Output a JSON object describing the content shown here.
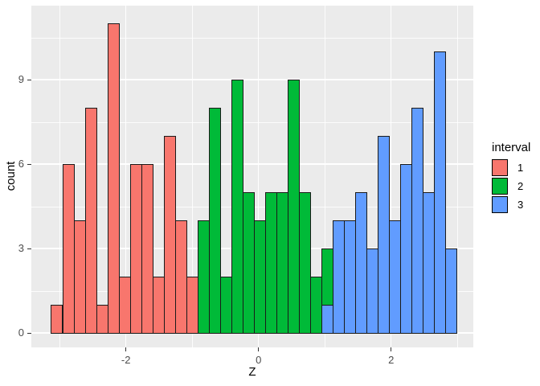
{
  "figure": {
    "background": "#FFFFFF"
  },
  "panel": {
    "background": "#EBEBEB",
    "gridline_color": "#FFFFFF",
    "bar_outline": "#1A1A1A"
  },
  "legend": {
    "title": "interval",
    "items": [
      {
        "label": "1",
        "color": "#F8766D"
      },
      {
        "label": "2",
        "color": "#00BA38"
      },
      {
        "label": "3",
        "color": "#619CFF"
      }
    ]
  },
  "axes": {
    "x": {
      "title": "Z",
      "ticks": [
        {
          "label": "-2",
          "value": -2
        },
        {
          "label": "0",
          "value": 0
        },
        {
          "label": "2",
          "value": 2
        }
      ],
      "minor_ticks": [
        -3,
        -1,
        1,
        3
      ],
      "tick_color": "#333333",
      "label_color": "#4D4D4D"
    },
    "y": {
      "title": "count",
      "ticks": [
        {
          "label": "0",
          "value": 0
        },
        {
          "label": "3",
          "value": 3
        },
        {
          "label": "6",
          "value": 6
        },
        {
          "label": "9",
          "value": 9
        }
      ],
      "minor_ticks": [
        1.5,
        4.5,
        7.5,
        10.5
      ],
      "tick_color": "#333333",
      "label_color": "#4D4D4D"
    }
  },
  "chart_data": {
    "type": "bar",
    "subtype": "stacked-histogram",
    "title": "",
    "xlabel": "Z",
    "ylabel": "count",
    "xlim": [
      -3.4,
      3.25
    ],
    "ylim": [
      0,
      11.55
    ],
    "grid": true,
    "legend_position": "right",
    "x_start": -3.13,
    "bin_width": 0.17,
    "series_colors": {
      "1": "#F8766D",
      "2": "#00BA38",
      "3": "#619CFF"
    },
    "bins": [
      {
        "segments": [
          {
            "interval": "1",
            "count": 1
          }
        ]
      },
      {
        "segments": [
          {
            "interval": "1",
            "count": 6
          }
        ]
      },
      {
        "segments": [
          {
            "interval": "1",
            "count": 4
          }
        ]
      },
      {
        "segments": [
          {
            "interval": "1",
            "count": 8
          }
        ]
      },
      {
        "segments": [
          {
            "interval": "1",
            "count": 1
          }
        ]
      },
      {
        "segments": [
          {
            "interval": "1",
            "count": 11
          }
        ]
      },
      {
        "segments": [
          {
            "interval": "1",
            "count": 2
          }
        ]
      },
      {
        "segments": [
          {
            "interval": "1",
            "count": 6
          }
        ]
      },
      {
        "segments": [
          {
            "interval": "1",
            "count": 6
          }
        ]
      },
      {
        "segments": [
          {
            "interval": "1",
            "count": 2
          }
        ]
      },
      {
        "segments": [
          {
            "interval": "1",
            "count": 7
          }
        ]
      },
      {
        "segments": [
          {
            "interval": "1",
            "count": 4
          }
        ]
      },
      {
        "segments": [
          {
            "interval": "1",
            "count": 2
          }
        ]
      },
      {
        "segments": [
          {
            "interval": "2",
            "count": 4
          }
        ]
      },
      {
        "segments": [
          {
            "interval": "2",
            "count": 8
          }
        ]
      },
      {
        "segments": [
          {
            "interval": "2",
            "count": 2
          }
        ]
      },
      {
        "segments": [
          {
            "interval": "2",
            "count": 9
          }
        ]
      },
      {
        "segments": [
          {
            "interval": "2",
            "count": 5
          }
        ]
      },
      {
        "segments": [
          {
            "interval": "2",
            "count": 4
          }
        ]
      },
      {
        "segments": [
          {
            "interval": "2",
            "count": 5
          }
        ]
      },
      {
        "segments": [
          {
            "interval": "2",
            "count": 5
          }
        ]
      },
      {
        "segments": [
          {
            "interval": "2",
            "count": 9
          }
        ]
      },
      {
        "segments": [
          {
            "interval": "2",
            "count": 5
          }
        ]
      },
      {
        "segments": [
          {
            "interval": "2",
            "count": 2
          }
        ]
      },
      {
        "segments": [
          {
            "interval": "3",
            "count": 1
          },
          {
            "interval": "2",
            "count": 2
          }
        ]
      },
      {
        "segments": [
          {
            "interval": "3",
            "count": 4
          }
        ]
      },
      {
        "segments": [
          {
            "interval": "3",
            "count": 4
          }
        ]
      },
      {
        "segments": [
          {
            "interval": "3",
            "count": 5
          }
        ]
      },
      {
        "segments": [
          {
            "interval": "3",
            "count": 3
          }
        ]
      },
      {
        "segments": [
          {
            "interval": "3",
            "count": 7
          }
        ]
      },
      {
        "segments": [
          {
            "interval": "3",
            "count": 4
          }
        ]
      },
      {
        "segments": [
          {
            "interval": "3",
            "count": 6
          }
        ]
      },
      {
        "segments": [
          {
            "interval": "3",
            "count": 8
          }
        ]
      },
      {
        "segments": [
          {
            "interval": "3",
            "count": 5
          }
        ]
      },
      {
        "segments": [
          {
            "interval": "3",
            "count": 10
          }
        ]
      },
      {
        "segments": [
          {
            "interval": "3",
            "count": 3
          }
        ]
      }
    ]
  }
}
